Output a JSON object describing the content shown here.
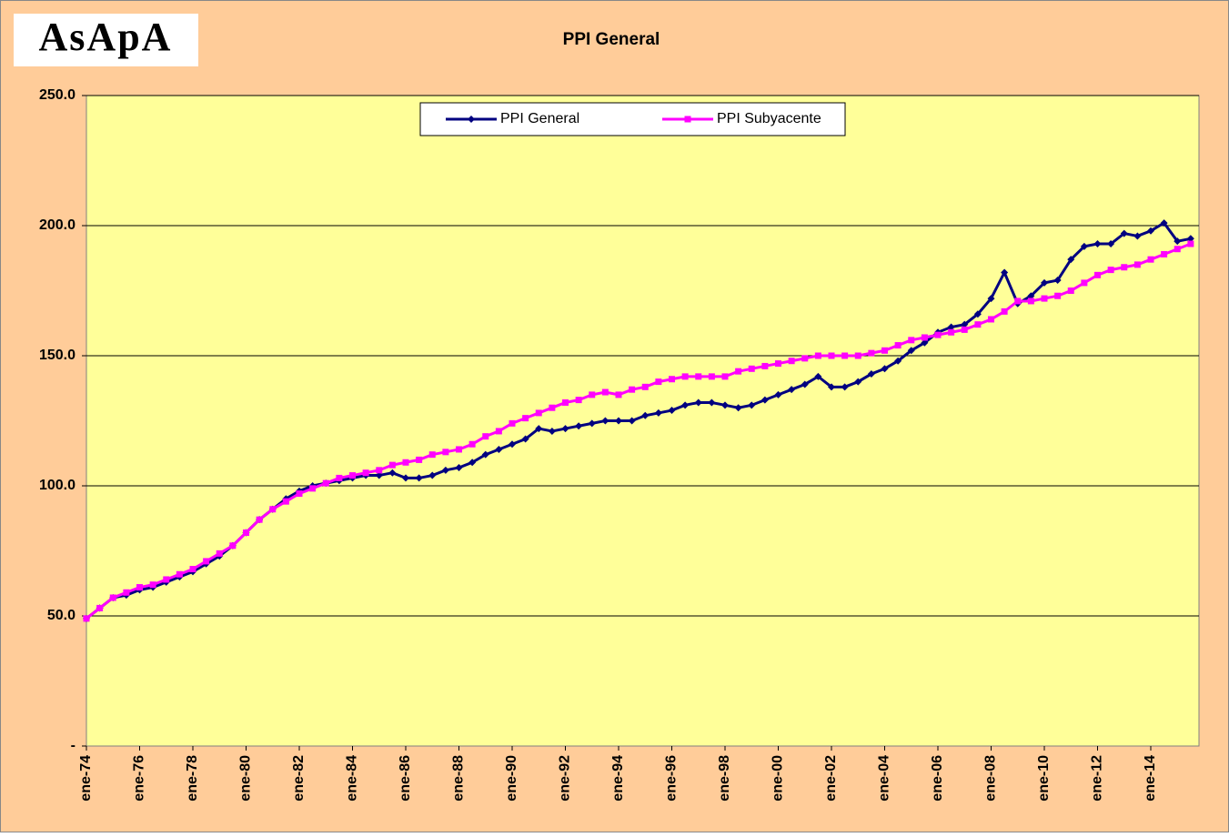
{
  "chart_data": {
    "type": "line",
    "logo": "AsApA",
    "title": "PPI General",
    "categories": [
      "ene-74",
      null,
      null,
      null,
      "ene-76",
      null,
      null,
      null,
      "ene-78",
      null,
      null,
      null,
      "ene-80",
      null,
      null,
      null,
      "ene-82",
      null,
      null,
      null,
      "ene-84",
      null,
      null,
      null,
      "ene-86",
      null,
      null,
      null,
      "ene-88",
      null,
      null,
      null,
      "ene-90",
      null,
      null,
      null,
      "ene-92",
      null,
      null,
      null,
      "ene-94",
      null,
      null,
      null,
      "ene-96",
      null,
      null,
      null,
      "ene-98",
      null,
      null,
      null,
      "ene-00",
      null,
      null,
      null,
      "ene-02",
      null,
      null,
      null,
      "ene-04",
      null,
      null,
      null,
      "ene-06",
      null,
      null,
      null,
      "ene-08",
      null,
      null,
      null,
      "ene-10",
      null,
      null,
      null,
      "ene-12",
      null,
      null,
      null,
      "ene-14",
      null,
      null,
      null
    ],
    "series": [
      {
        "name": "PPI General",
        "color": "#000080",
        "marker": "diamond",
        "values": [
          49,
          53,
          57,
          58,
          60,
          61,
          63,
          65,
          67,
          70,
          73,
          77,
          82,
          87,
          91,
          95,
          98,
          100,
          101,
          102,
          103,
          104,
          104,
          105,
          103,
          103,
          104,
          106,
          107,
          109,
          112,
          114,
          116,
          118,
          122,
          121,
          122,
          123,
          124,
          125,
          125,
          125,
          127,
          128,
          129,
          131,
          132,
          132,
          131,
          130,
          131,
          133,
          135,
          137,
          139,
          142,
          138,
          138,
          140,
          143,
          145,
          148,
          152,
          155,
          159,
          161,
          162,
          166,
          172,
          182,
          170,
          173,
          178,
          179,
          187,
          192,
          193,
          193,
          197,
          196,
          198,
          201,
          194,
          195
        ]
      },
      {
        "name": "PPI Subyacente",
        "color": "#FF00FF",
        "marker": "square",
        "values": [
          49,
          53,
          57,
          59,
          61,
          62,
          64,
          66,
          68,
          71,
          74,
          77,
          82,
          87,
          91,
          94,
          97,
          99,
          101,
          103,
          104,
          105,
          106,
          108,
          109,
          110,
          112,
          113,
          114,
          116,
          119,
          121,
          124,
          126,
          128,
          130,
          132,
          133,
          135,
          136,
          135,
          137,
          138,
          140,
          141,
          142,
          142,
          142,
          142,
          144,
          145,
          146,
          147,
          148,
          149,
          150,
          150,
          150,
          150,
          151,
          152,
          154,
          156,
          157,
          158,
          159,
          160,
          162,
          164,
          167,
          171,
          171,
          172,
          173,
          175,
          178,
          181,
          183,
          184,
          185,
          187,
          189,
          191,
          193
        ]
      }
    ],
    "ylim": [
      0,
      250
    ],
    "yticks": [
      {
        "value": 0,
        "label": "-"
      },
      {
        "value": 50,
        "label": "50.0"
      },
      {
        "value": 100,
        "label": "100.0"
      },
      {
        "value": 150,
        "label": "150.0"
      },
      {
        "value": 200,
        "label": "200.0"
      },
      {
        "value": 250,
        "label": "250.0"
      }
    ],
    "grid": true,
    "legend": "top"
  }
}
